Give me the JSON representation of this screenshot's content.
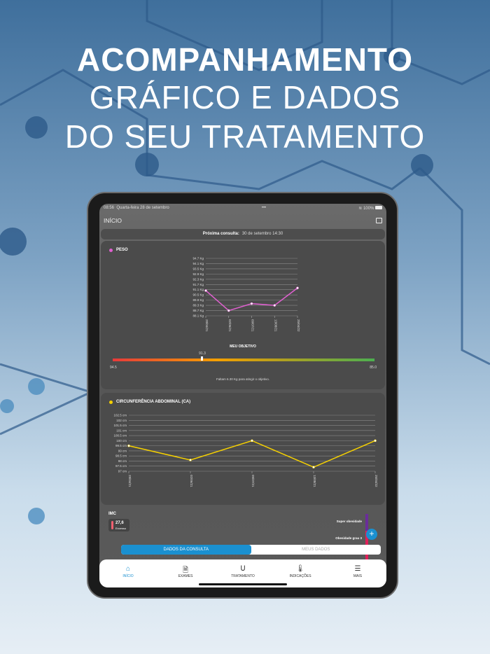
{
  "headline": {
    "line1": "ACOMPANHAMENTO",
    "line2": "GRÁFICO E DADOS",
    "line3": "DO SEU TRATAMENTO"
  },
  "status_bar": {
    "time": "08:56",
    "date": "Quarta-feira 28 de setembro",
    "battery": "100%"
  },
  "header": {
    "title": "INÍCIO",
    "icon": "chat-icon"
  },
  "next_appointment": {
    "label": "Próxima consulta:",
    "value": "30 de setembro 14:30"
  },
  "peso": {
    "title": "PESO",
    "color": "#e060d0",
    "chart_data": {
      "type": "line",
      "categories": [
        "28/04/21",
        "02/06/21",
        "09/07/21",
        "13/08/21",
        "25/04/22"
      ],
      "values": [
        91.0,
        88.7,
        89.5,
        89.3,
        91.3
      ],
      "yticks": [
        "88.1 Kg",
        "88.7 Kg",
        "89.3 Kg",
        "89.9 Kg",
        "90.5 Kg",
        "91.1 Kg",
        "91.7 Kg",
        "92.3 Kg",
        "92.9 Kg",
        "93.5 Kg",
        "94.1 Kg",
        "94.7 Kg"
      ],
      "ylim": [
        88.1,
        94.7
      ],
      "grid": true
    }
  },
  "goal": {
    "title": "MEU OBJETIVO",
    "current": "91.3",
    "start": "94.5",
    "target": "85.0",
    "progress": 0.34,
    "message": "Faltam 6.30 Kg para atingir o objetivo."
  },
  "ca": {
    "title": "CIRCUNFERÊNCIA ABDOMINAL (CA)",
    "color": "#f5d000",
    "chart_data": {
      "type": "line",
      "categories": [
        "28/04/21",
        "02/06/21",
        "09/07/21",
        "13/08/21",
        "25/04/22"
      ],
      "values": [
        99.5,
        98.1,
        100,
        97.4,
        100
      ],
      "yticks": [
        "97 cm",
        "97.5 cm",
        "98 cm",
        "98.5 cm",
        "99 cm",
        "99.5 cm",
        "100 cm",
        "100.5 cm",
        "101 cm",
        "101.5 cm",
        "102 cm",
        "102.5 cm"
      ],
      "ylim": [
        97,
        102.5
      ],
      "grid": true
    }
  },
  "imc": {
    "title": "IMC",
    "value": "27,6",
    "label": "Excesso",
    "levels": [
      "Super obesidade",
      "Obesidade grau 3"
    ]
  },
  "segmented": {
    "options": [
      "DADOS DA CONSULTA",
      "MEUS DADOS"
    ],
    "selected": 0
  },
  "tabs": [
    {
      "label": "INÍCIO",
      "icon": "home-icon"
    },
    {
      "label": "EXAMES",
      "icon": "document-icon"
    },
    {
      "label": "TRATAMENTO",
      "icon": "stethoscope-icon"
    },
    {
      "label": "INDICAÇÕES",
      "icon": "thermometer-icon"
    },
    {
      "label": "MAIS",
      "icon": "menu-icon"
    }
  ]
}
